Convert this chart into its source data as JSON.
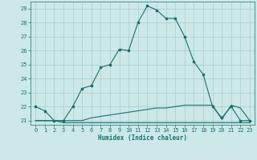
{
  "xlabel": "Humidex (Indice chaleur)",
  "background_color": "#cce8e8",
  "grid_color": "#aacccc",
  "line_color": "#1a7070",
  "xlim": [
    -0.5,
    23.5
  ],
  "ylim": [
    20.7,
    29.5
  ],
  "yticks": [
    21,
    22,
    23,
    24,
    25,
    26,
    27,
    28,
    29
  ],
  "xticks": [
    0,
    1,
    2,
    3,
    4,
    5,
    6,
    7,
    8,
    9,
    10,
    11,
    12,
    13,
    14,
    15,
    16,
    17,
    18,
    19,
    20,
    21,
    22,
    23
  ],
  "series1_x": [
    0,
    1,
    2,
    3,
    4,
    5,
    6,
    7,
    8,
    9,
    10,
    11,
    12,
    13,
    14,
    15,
    16,
    17,
    18,
    19,
    20,
    21,
    22,
    23
  ],
  "series1_y": [
    22.0,
    21.7,
    21.0,
    21.0,
    22.0,
    23.3,
    23.5,
    24.8,
    25.0,
    26.1,
    26.0,
    28.0,
    29.2,
    28.9,
    28.3,
    28.3,
    27.0,
    25.2,
    24.3,
    22.0,
    21.2,
    22.0,
    21.0,
    21.0
  ],
  "series2_x": [
    0,
    1,
    2,
    3,
    4,
    5,
    6,
    7,
    8,
    9,
    10,
    11,
    12,
    13,
    14,
    15,
    16,
    17,
    18,
    19,
    20,
    21,
    22,
    23
  ],
  "series2_y": [
    21.0,
    21.0,
    21.0,
    20.85,
    20.85,
    20.85,
    20.85,
    20.85,
    20.85,
    20.85,
    20.85,
    20.85,
    20.85,
    20.85,
    20.85,
    20.85,
    20.85,
    20.85,
    20.85,
    20.85,
    20.85,
    20.85,
    20.85,
    20.85
  ],
  "series3_x": [
    0,
    1,
    2,
    3,
    4,
    5,
    6,
    7,
    8,
    9,
    10,
    11,
    12,
    13,
    14,
    15,
    16,
    17,
    18,
    19,
    20,
    21,
    22,
    23
  ],
  "series3_y": [
    21.0,
    21.0,
    21.0,
    21.0,
    21.0,
    21.0,
    21.2,
    21.3,
    21.4,
    21.5,
    21.6,
    21.7,
    21.8,
    21.9,
    21.9,
    22.0,
    22.1,
    22.1,
    22.1,
    22.1,
    21.1,
    22.1,
    21.9,
    21.0
  ]
}
